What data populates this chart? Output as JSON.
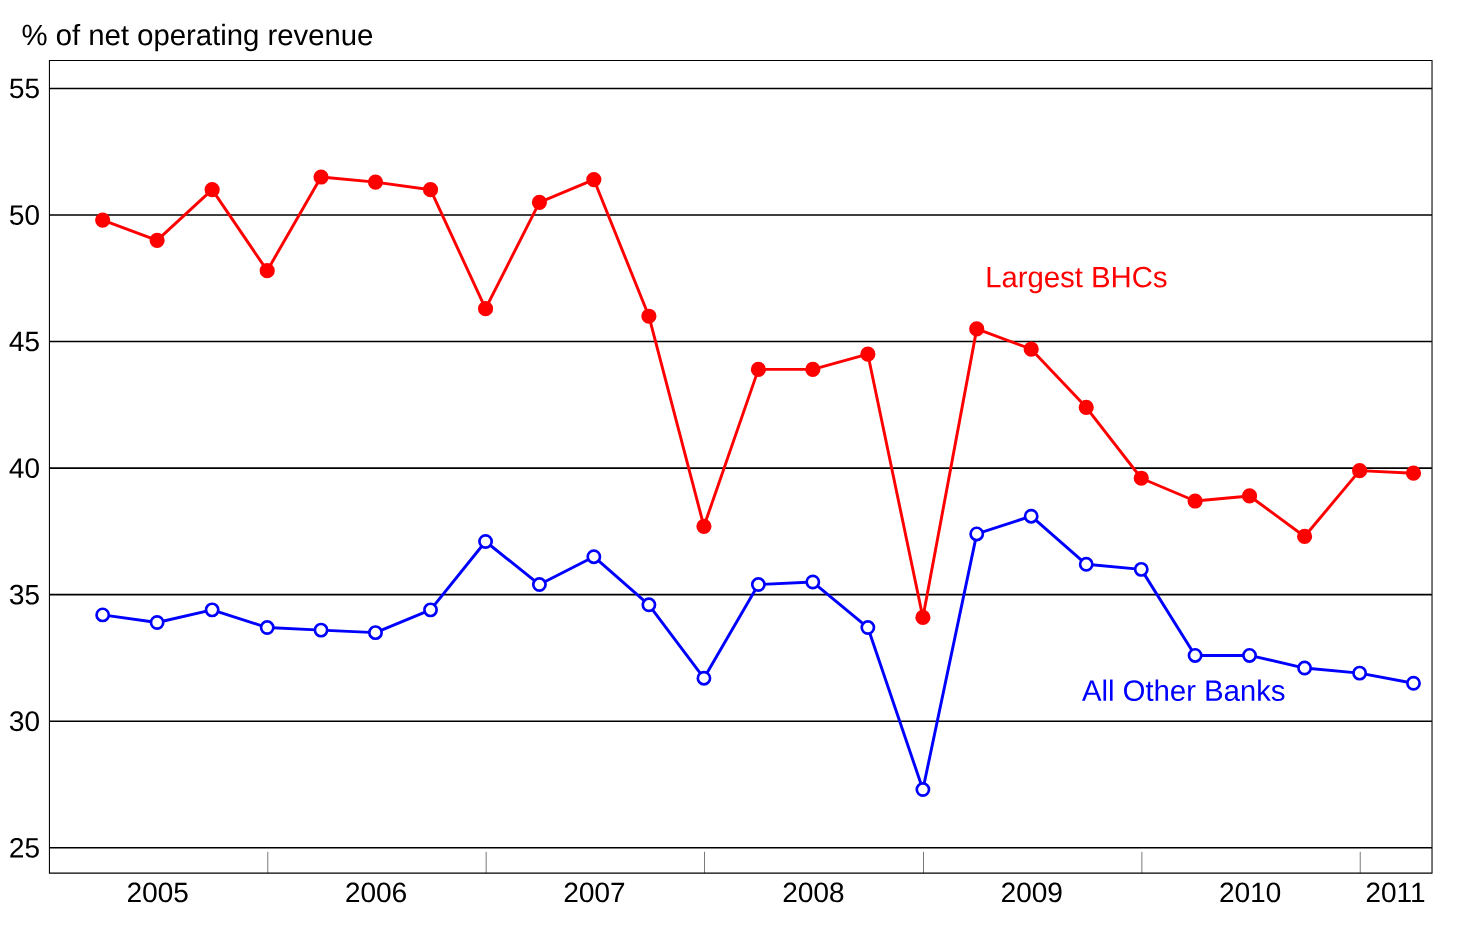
{
  "chart_data": {
    "type": "line",
    "ylabel": "% of net operating revenue",
    "x": [
      "2005-03-31",
      "2005-06-30",
      "2005-09-30",
      "2005-12-31",
      "2006-03-31",
      "2006-06-30",
      "2006-09-30",
      "2006-12-31",
      "2007-03-31",
      "2007-06-30",
      "2007-09-30",
      "2007-12-31",
      "2008-03-31",
      "2008-06-30",
      "2008-09-30",
      "2008-12-31",
      "2009-03-31",
      "2009-06-30",
      "2009-09-30",
      "2009-12-31",
      "2010-03-31",
      "2010-06-30",
      "2010-09-30",
      "2010-12-31",
      "2011-03-31"
    ],
    "series": [
      {
        "name": "Largest BHCs",
        "color": "#ff0000",
        "values": [
          49.8,
          49.0,
          51.0,
          47.8,
          51.5,
          51.3,
          51.0,
          46.3,
          50.5,
          51.4,
          46.0,
          37.7,
          43.9,
          43.9,
          44.5,
          34.1,
          45.5,
          44.7,
          42.4,
          39.6,
          38.7,
          38.9,
          37.3,
          39.9,
          39.8
        ]
      },
      {
        "name": "All Other Banks",
        "color": "#0000ff",
        "values": [
          34.2,
          33.9,
          34.4,
          33.7,
          33.6,
          33.5,
          34.4,
          37.1,
          35.4,
          36.5,
          34.6,
          31.7,
          35.4,
          35.5,
          33.7,
          27.3,
          37.4,
          38.1,
          36.2,
          36.0,
          32.6,
          32.6,
          32.1,
          31.9,
          31.5
        ]
      }
    ],
    "xlim": [
      "2005-01-01",
      "2011-05-01"
    ],
    "xticks": [
      {
        "value": "2005-07-01",
        "label": "2005"
      },
      {
        "value": "2006-07-01",
        "label": "2006"
      },
      {
        "value": "2007-07-01",
        "label": "2007"
      },
      {
        "value": "2008-07-01",
        "label": "2008"
      },
      {
        "value": "2009-07-01",
        "label": "2009"
      },
      {
        "value": "2010-07-01",
        "label": "2010"
      },
      {
        "value": "2011-03-01",
        "label": "2011"
      },
      {
        "value": "2006-01-01",
        "label": null
      },
      {
        "value": "2007-01-01",
        "label": null
      },
      {
        "value": "2008-01-01",
        "label": null
      },
      {
        "value": "2009-01-01",
        "label": null
      },
      {
        "value": "2010-01-01",
        "label": null
      },
      {
        "value": "2011-01-01",
        "label": null
      }
    ],
    "ylim": [
      24,
      56.1
    ],
    "yticks": [
      25,
      30,
      35,
      40,
      45,
      50,
      55
    ],
    "grid": "y",
    "marker": "circle",
    "line_style": "solid"
  }
}
